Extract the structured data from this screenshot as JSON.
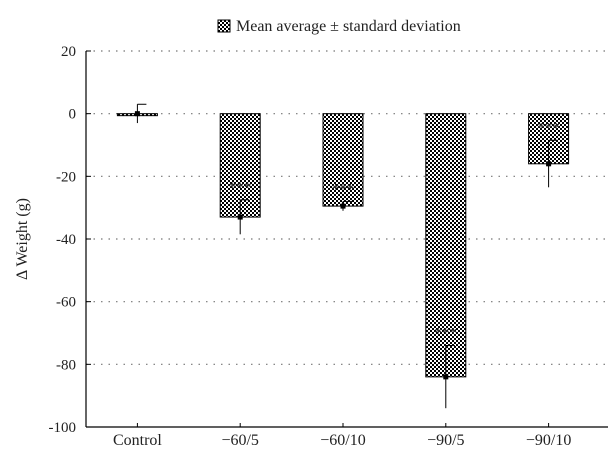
{
  "chart_data": {
    "type": "bar",
    "categories": [
      "Control",
      "-60/5",
      "-60/10",
      "-90/5",
      "-90/10"
    ],
    "values": [
      0,
      -33,
      -29.5,
      -84,
      -16
    ],
    "error": [
      3,
      5.5,
      1.5,
      10,
      7.5
    ],
    "significance": [
      "",
      "***",
      "***",
      "***",
      "***"
    ],
    "ylabel": "Δ Weight (g)",
    "xlabel": "",
    "ylim": [
      -100,
      20
    ],
    "yticks": [
      20,
      0,
      -20,
      -40,
      -60,
      -80,
      -100
    ],
    "ytick_labels": [
      "20",
      "0",
      "-20",
      "-40",
      "-60",
      "-80",
      "-100"
    ],
    "grid": "dotted horizontal",
    "legend": {
      "label": "Mean average ± standard deviation",
      "position": "top-center"
    },
    "bar_pattern": "checkerboard"
  }
}
